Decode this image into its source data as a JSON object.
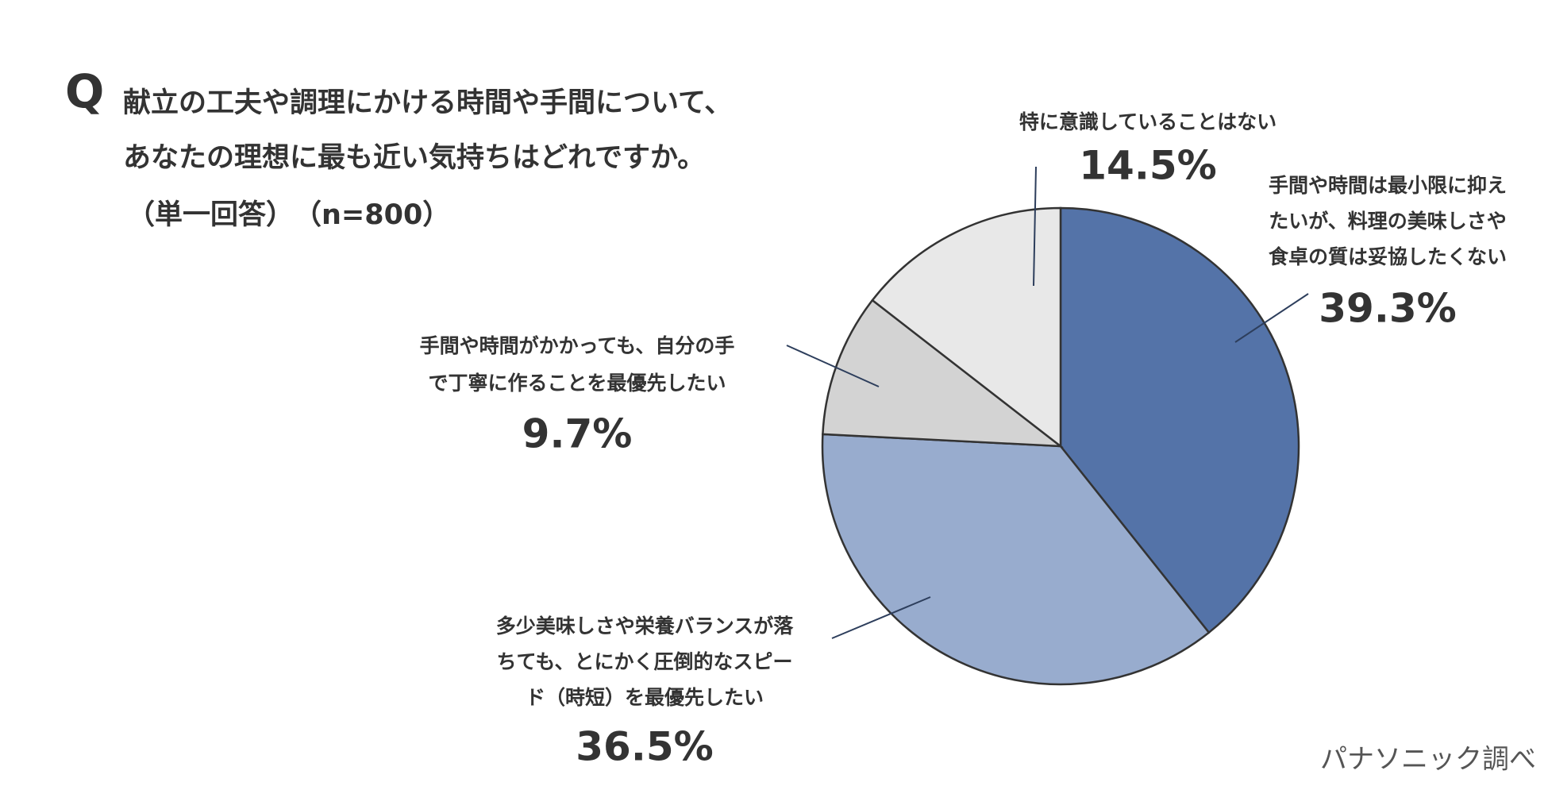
{
  "chart_data": {
    "type": "pie",
    "question_marker": "Q",
    "title": [
      "献立の工夫や調理にかける時間や手間について、",
      "あなたの理想に最も近い気持ちはどれですか。"
    ],
    "subtitle": "（単一回答）　（n=800）",
    "categories": [
      [
        "手間や時間は最小限に抑え",
        "たいが、料理の美味しさや",
        "食卓の質は妥協したくない"
      ],
      [
        "多少美味しさや栄養バランスが落",
        "ちても、とにかく圧倒的なスピー",
        "ド（時短）を最優先したい"
      ],
      [
        "手間や時間がかかっても、自分の手",
        "で丁寧に作ることを最優先したい"
      ],
      [
        "特に意識していることはない"
      ]
    ],
    "values": [
      39.3,
      36.5,
      9.7,
      14.5
    ],
    "value_labels": [
      "39.3%",
      "36.5%",
      "9.7%",
      "14.5%"
    ],
    "colors": [
      "#5473a8",
      "#98acce",
      "#d3d3d3",
      "#e8e8e8"
    ],
    "source": "パナソニック調べ"
  }
}
